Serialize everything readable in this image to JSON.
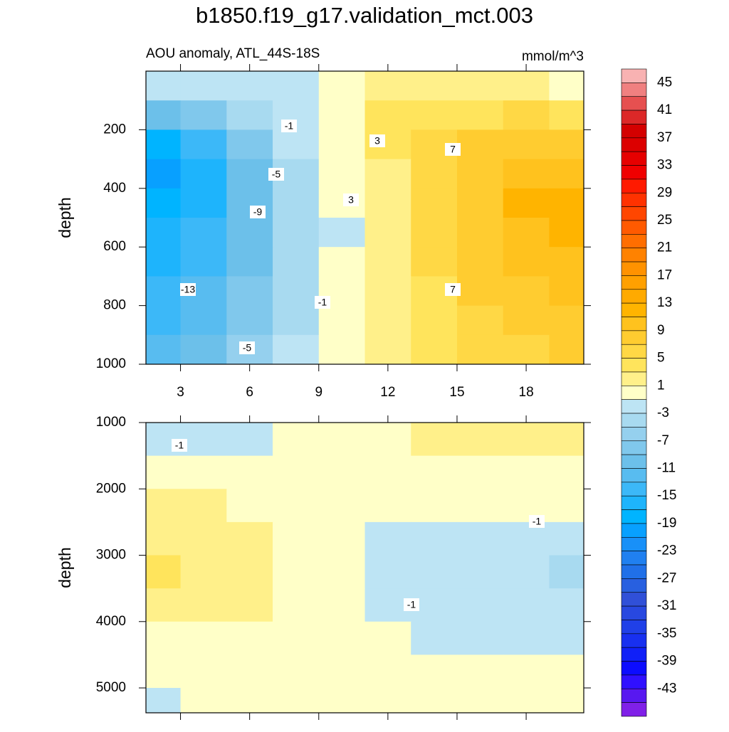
{
  "chart_data": [
    {
      "type": "contour",
      "title": "b1850.f19_g17.validation_mct.003",
      "subtitle_left": "AOU anomaly, ATL_44S-18S",
      "subtitle_right": "mmol/m^3",
      "ylabel": "depth",
      "x": [
        2,
        4,
        6,
        8,
        10,
        12,
        14,
        16,
        18,
        20
      ],
      "y": [
        50,
        150,
        250,
        350,
        450,
        550,
        650,
        750,
        850,
        950
      ],
      "z": [
        [
          -2,
          -2,
          -2,
          -2,
          0,
          2,
          2,
          2,
          2,
          0
        ],
        [
          -10,
          -8,
          -4,
          -2,
          0,
          4,
          4,
          4,
          6,
          4
        ],
        [
          -18,
          -14,
          -8,
          -2,
          0,
          4,
          6,
          8,
          8,
          8
        ],
        [
          -20,
          -16,
          -10,
          -4,
          0,
          2,
          6,
          8,
          10,
          10
        ],
        [
          -18,
          -16,
          -10,
          -4,
          0,
          2,
          6,
          8,
          12,
          12
        ],
        [
          -16,
          -14,
          -10,
          -4,
          -2,
          2,
          6,
          8,
          10,
          12
        ],
        [
          -16,
          -14,
          -10,
          -4,
          0,
          2,
          6,
          8,
          10,
          10
        ],
        [
          -14,
          -12,
          -8,
          -4,
          0,
          2,
          4,
          8,
          8,
          10
        ],
        [
          -14,
          -12,
          -8,
          -4,
          0,
          2,
          4,
          6,
          8,
          8
        ],
        [
          -12,
          -10,
          -6,
          -2,
          0,
          2,
          4,
          6,
          6,
          8
        ]
      ],
      "xlim": [
        1.5,
        20.5
      ],
      "ylim": [
        0,
        1000
      ],
      "y_reversed": true,
      "xticks": [
        3,
        6,
        9,
        12,
        15,
        18
      ],
      "yticks": [
        200,
        400,
        600,
        800,
        1000
      ],
      "xtick_labels": true,
      "contour_labels": [
        -1,
        3,
        7,
        -5,
        3,
        -9,
        -13,
        7,
        -1,
        -5
      ],
      "colorbar": {
        "clim": [
          -47,
          47
        ],
        "colors": [
          "#f8b2b2",
          "#f08080",
          "#e65050",
          "#dc2828",
          "#d40000",
          "#dc0000",
          "#e60000",
          "#f00000",
          "#ff1a00",
          "#ff3200",
          "#ff4600",
          "#ff5a00",
          "#ff6e00",
          "#ff8200",
          "#ff9200",
          "#ffa000",
          "#ffaa00",
          "#ffb400",
          "#ffc21e",
          "#ffcc30",
          "#ffd845",
          "#ffe45c",
          "#fff08a",
          "#ffffc8",
          "#bde4f4",
          "#a8daf0",
          "#95d0ee",
          "#80c8ec",
          "#6cc0ea",
          "#58bcf0",
          "#3cb8f8",
          "#1eb4fc",
          "#00b4ff",
          "#08a0ff",
          "#1890f8",
          "#2080f0",
          "#2070e8",
          "#2860e0",
          "#3050d8",
          "#2848e0",
          "#2040e8",
          "#1830f0",
          "#1020f8",
          "#0c0cff",
          "#3010ff",
          "#5818f0",
          "#8020e8"
        ],
        "ticks": [
          45,
          41,
          37,
          33,
          29,
          25,
          21,
          17,
          13,
          9,
          5,
          1,
          -3,
          -7,
          -11,
          -15,
          -19,
          -23,
          -27,
          -31,
          -35,
          -39,
          -43
        ]
      }
    },
    {
      "type": "contour",
      "ylabel": "depth",
      "x": [
        2,
        4,
        6,
        8,
        10,
        12,
        14,
        16,
        18,
        20
      ],
      "y": [
        1250,
        1750,
        2250,
        2750,
        3250,
        3750,
        4250,
        4750,
        5250
      ],
      "z": [
        [
          -2,
          -2,
          -2,
          0,
          0,
          0,
          2,
          2,
          2,
          2
        ],
        [
          0,
          0,
          0,
          0,
          0,
          0,
          0,
          0,
          0,
          0
        ],
        [
          2,
          2,
          0,
          0,
          0,
          0,
          0,
          0,
          0,
          0
        ],
        [
          2,
          2,
          2,
          0,
          0,
          -2,
          -2,
          -2,
          -2,
          -2
        ],
        [
          4,
          2,
          2,
          0,
          0,
          -2,
          -2,
          -2,
          -2,
          -4
        ],
        [
          2,
          2,
          2,
          0,
          0,
          -2,
          -2,
          -2,
          -2,
          -2
        ],
        [
          0,
          0,
          0,
          0,
          0,
          0,
          -2,
          -2,
          -2,
          -2
        ],
        [
          0,
          0,
          0,
          0,
          0,
          0,
          0,
          0,
          0,
          0
        ],
        [
          -2,
          0,
          0,
          0,
          0,
          0,
          0,
          0,
          0,
          0
        ]
      ],
      "xlim": [
        1.5,
        20.5
      ],
      "ylim": [
        1000,
        5375
      ],
      "y_reversed": true,
      "xticks": [
        3,
        6,
        9,
        12,
        15,
        18
      ],
      "yticks": [
        1000,
        2000,
        3000,
        4000,
        5000
      ],
      "xtick_labels": false,
      "contour_labels": [
        -1,
        -1,
        -1
      ]
    }
  ]
}
